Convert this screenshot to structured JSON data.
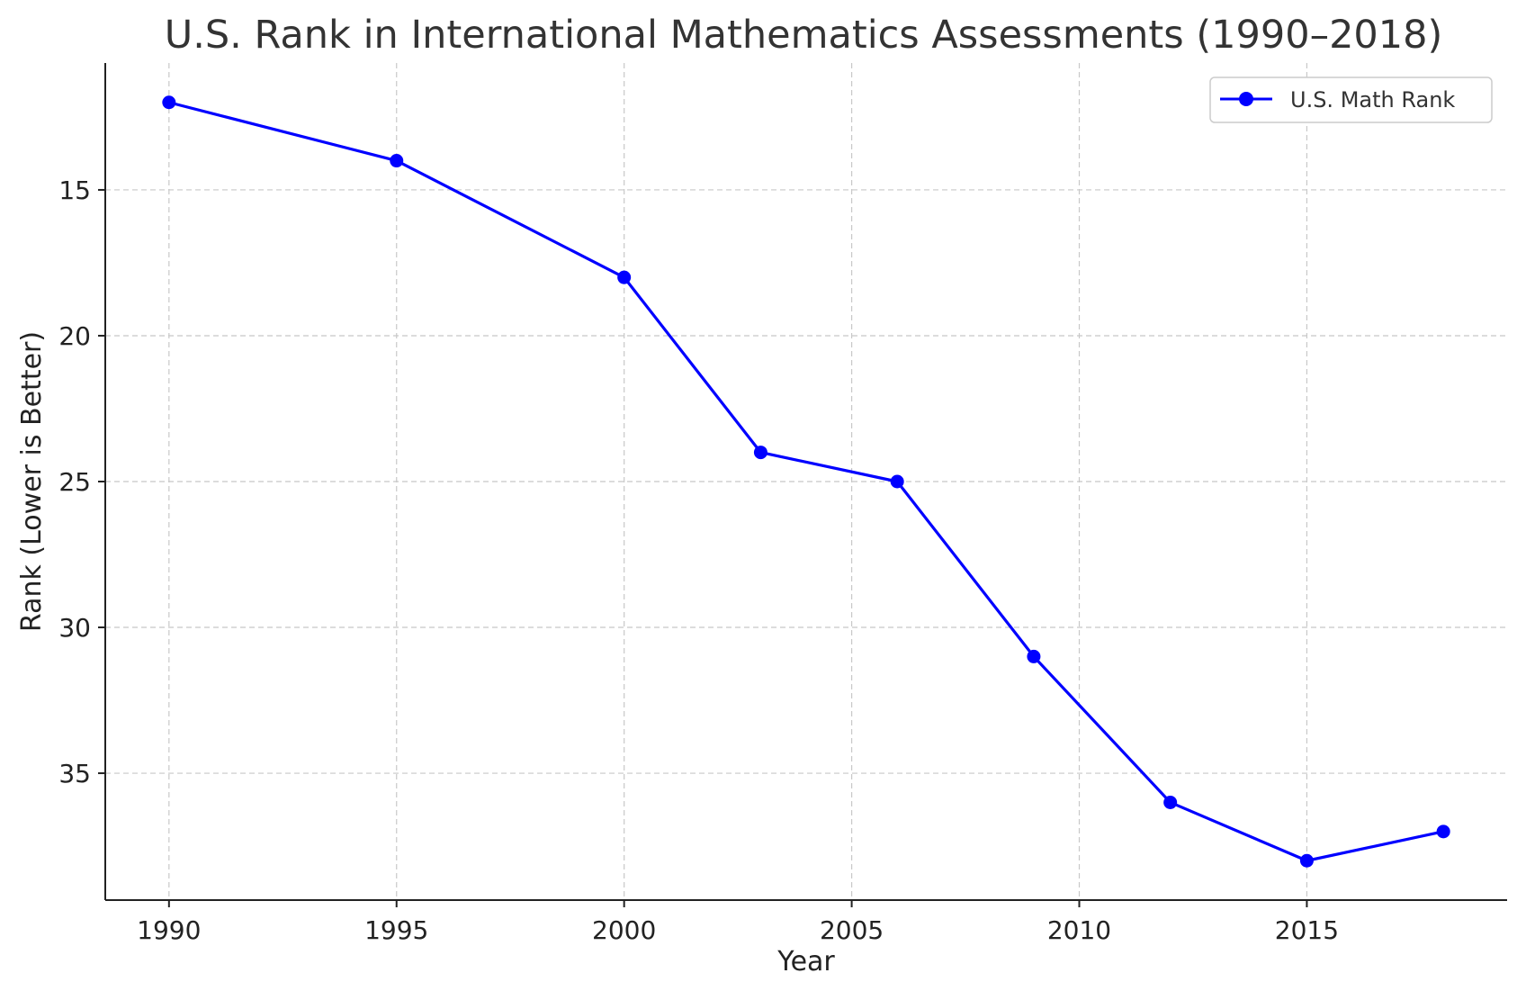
{
  "chart_data": {
    "type": "line",
    "title": "U.S. Rank in International Mathematics Assessments (1990–2018)",
    "xlabel": "Year",
    "ylabel": "Rank (Lower is Better)",
    "x": [
      1990,
      1995,
      2000,
      2003,
      2006,
      2009,
      2012,
      2015,
      2018
    ],
    "series": [
      {
        "name": "U.S. Math Rank",
        "color": "#0000ff",
        "marker": "circle",
        "values": [
          12,
          14,
          18,
          24,
          25,
          31,
          36,
          38,
          37
        ]
      }
    ],
    "xlim": [
      1988.6,
      2019.4
    ],
    "ylim": [
      39.35,
      10.65
    ],
    "y_inverted": true,
    "xticks": [
      1990,
      1995,
      2000,
      2005,
      2010,
      2015
    ],
    "yticks": [
      15,
      20,
      25,
      30,
      35
    ],
    "grid": true,
    "legend_position": "top-right"
  }
}
